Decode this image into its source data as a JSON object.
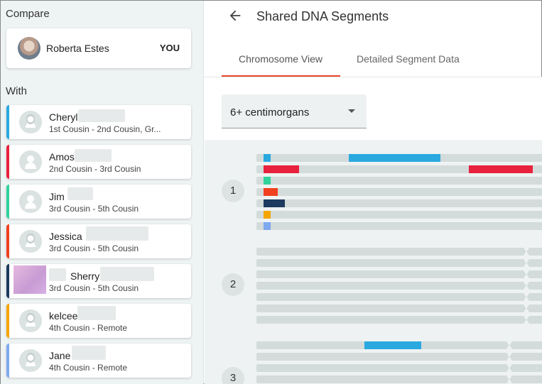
{
  "sidebar": {
    "compare_label": "Compare",
    "with_label": "With",
    "you": {
      "name": "Roberta Estes",
      "tag": "YOU"
    },
    "matches": [
      {
        "name": "Cheryl",
        "relationship": "1st Cousin - 2nd Cousin, Gr...",
        "color": "#2aa9e0",
        "avatar": "female-avatar-icon"
      },
      {
        "name": "Amos",
        "relationship": "2nd Cousin - 3rd Cousin",
        "color": "#e8213c",
        "avatar": "male-avatar-icon"
      },
      {
        "name": "Jim",
        "relationship": "3rd Cousin - 5th Cousin",
        "color": "#2fd39a",
        "avatar": "male-avatar-icon"
      },
      {
        "name": "Jessica",
        "relationship": "3rd Cousin - 5th Cousin",
        "color": "#f0401f",
        "avatar": "female-avatar-icon"
      },
      {
        "name": "Sherry",
        "relationship": "3rd Cousin - 5th Cousin",
        "color": "#1d3a5f",
        "avatar": "photo"
      },
      {
        "name": "kelcee",
        "relationship": "4th Cousin - Remote",
        "color": "#f5a500",
        "avatar": "female-avatar-icon"
      },
      {
        "name": "Jane",
        "relationship": "4th Cousin - Remote",
        "color": "#7ea8f0",
        "avatar": "female-avatar-icon"
      }
    ]
  },
  "header": {
    "title": "Shared DNA Segments"
  },
  "tabs": [
    {
      "label": "Chromosome View",
      "active": true
    },
    {
      "label": "Detailed Segment Data",
      "active": false
    }
  ],
  "filter": {
    "selected": "6+ centimorgans"
  },
  "chromosomes": [
    {
      "number": "1"
    },
    {
      "number": "2"
    },
    {
      "number": "3"
    }
  ]
}
